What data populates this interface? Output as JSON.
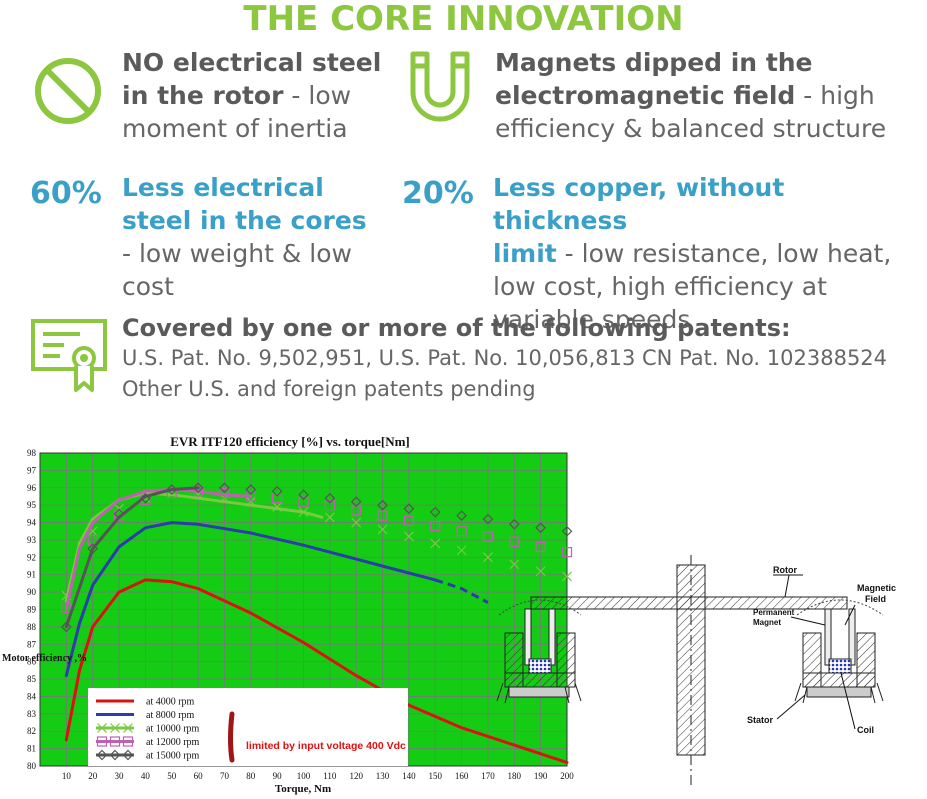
{
  "colors": {
    "green": "#8dc63f",
    "blue": "#3aa0c8",
    "text": "#666666"
  },
  "title": "THE CORE INNOVATION",
  "features": [
    {
      "icon": "no-sign-icon",
      "bold1": "NO electrical steel",
      "bold2": "in the rotor",
      "rest1": " - low",
      "rest2": "moment of inertia"
    },
    {
      "icon": "magnet-icon",
      "bold1": "Magnets dipped in the",
      "bold2": "electromagnetic field",
      "rest1": " - high",
      "rest2": "efficiency & balanced structure"
    },
    {
      "pct": "60%",
      "h1": "Less electrical",
      "h2": "steel in the cores",
      "r1": "- low weight & low",
      "r2": "cost"
    },
    {
      "pct": "20%",
      "h1": "Less copper, without thickness",
      "h2": "limit",
      "r0": " - low resistance, low heat,",
      "r1": "low cost, high efficiency at",
      "r2": "variable speeds"
    }
  ],
  "patents": {
    "title": "Covered by one or more of the following patents:",
    "line1": "U.S. Pat. No. 9,502,951, U.S. Pat. No. 10,056,813 CN Pat. No. 102388524",
    "line2": "Other U.S. and foreign patents pending"
  },
  "chart_data": {
    "type": "line",
    "title": "EVR ITF120 efficiency [%] vs. torque[Nm]",
    "xlabel": "Torque, Nm",
    "ylabel": "Motor efficiency ,%",
    "xlim": [
      0,
      200
    ],
    "ylim": [
      80,
      98
    ],
    "x_ticks": [
      10,
      20,
      30,
      40,
      50,
      60,
      70,
      80,
      90,
      100,
      110,
      120,
      130,
      140,
      150,
      160,
      170,
      180,
      190,
      200
    ],
    "y_ticks": [
      80,
      81,
      82,
      83,
      84,
      85,
      86,
      87,
      88,
      89,
      90,
      91,
      92,
      93,
      94,
      95,
      96,
      97,
      98
    ],
    "grid": true,
    "annotation": "limited by input voltage 400 Vdc",
    "series": [
      {
        "name": "at 4000 rpm",
        "color": "#dd1111",
        "marker": "none",
        "x": [
          10,
          15,
          20,
          30,
          40,
          50,
          60,
          80,
          100,
          120,
          140,
          160,
          180,
          200
        ],
        "y": [
          81.5,
          85.5,
          88.0,
          90.0,
          90.7,
          90.6,
          90.2,
          88.8,
          87.1,
          85.2,
          83.5,
          82.2,
          81.2,
          80.2
        ]
      },
      {
        "name": "at 8000 rpm",
        "color": "#2a3da8",
        "marker": "none",
        "x": [
          10,
          15,
          20,
          30,
          40,
          50,
          60,
          80,
          100,
          120,
          140,
          150
        ],
        "y": [
          85.2,
          88.2,
          90.4,
          92.6,
          93.7,
          94.0,
          93.9,
          93.4,
          92.7,
          91.9,
          91.1,
          90.7
        ],
        "dashed_x": [
          150,
          160,
          170
        ],
        "dashed_y": [
          90.7,
          90.2,
          89.4
        ]
      },
      {
        "name": "at 10000 rpm",
        "color": "#7ac943",
        "marker": "x",
        "x": [
          10,
          15,
          20,
          30,
          40,
          50,
          60,
          70,
          80,
          90,
          100,
          107
        ],
        "y": [
          89.5,
          92.8,
          94.2,
          95.3,
          95.7,
          95.6,
          95.4,
          95.2,
          95.0,
          94.8,
          94.6,
          94.3
        ],
        "x_markers": [
          10,
          20,
          30,
          40,
          50,
          60,
          70,
          80,
          90,
          100,
          110,
          120,
          130,
          140,
          150,
          160,
          170,
          180,
          190,
          200
        ],
        "y_markers": [
          89.8,
          93.5,
          94.8,
          95.4,
          95.7,
          95.6,
          95.4,
          95.2,
          94.9,
          94.6,
          94.3,
          94.0,
          93.6,
          93.2,
          92.8,
          92.4,
          92.0,
          91.6,
          91.2,
          90.9
        ]
      },
      {
        "name": "at 12000 rpm",
        "color": "#c060b0",
        "marker": "square",
        "x": [
          10,
          15,
          20,
          30,
          40,
          50,
          60,
          70,
          80
        ],
        "y": [
          89.0,
          92.5,
          94.0,
          95.3,
          95.8,
          95.9,
          95.8,
          95.6,
          95.5
        ],
        "x_markers": [
          10,
          20,
          30,
          40,
          50,
          60,
          70,
          80,
          90,
          100,
          110,
          120,
          130,
          140,
          150,
          160,
          170,
          180,
          190,
          200
        ],
        "y_markers": [
          89.1,
          93.0,
          94.4,
          95.3,
          95.7,
          95.8,
          95.7,
          95.5,
          95.4,
          95.2,
          95.0,
          94.7,
          94.4,
          94.1,
          93.8,
          93.5,
          93.2,
          92.9,
          92.6,
          92.3
        ]
      },
      {
        "name": "at 15000 rpm",
        "color": "#555555",
        "marker": "diamond",
        "x": [
          10,
          20,
          30,
          40,
          50,
          60
        ],
        "y": [
          88.0,
          92.5,
          94.3,
          95.5,
          95.9,
          96.0
        ],
        "x_markers": [
          10,
          20,
          30,
          40,
          50,
          60,
          70,
          80,
          90,
          100,
          110,
          120,
          130,
          140,
          150,
          160,
          170,
          180,
          190,
          200
        ],
        "y_markers": [
          88.0,
          92.5,
          94.5,
          95.4,
          95.9,
          96.0,
          96.0,
          95.9,
          95.8,
          95.6,
          95.4,
          95.2,
          95.0,
          94.8,
          94.6,
          94.4,
          94.2,
          93.9,
          93.7,
          93.5
        ]
      }
    ]
  },
  "diagram": {
    "labels": {
      "rotor": "Rotor",
      "pm": "Permanent Magnet",
      "pm1": "Permanent",
      "pm2": "Magnet",
      "mf1": "Magnetic",
      "mf2": "Field",
      "stator": "Stator",
      "coil": "Coil"
    }
  }
}
